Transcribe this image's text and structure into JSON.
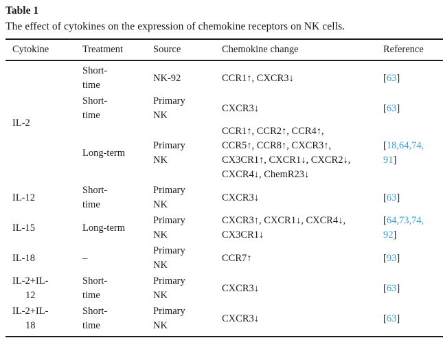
{
  "title": "Table 1",
  "caption": "The effect of cytokines on the expression of chemokine receptors on NK cells.",
  "colors": {
    "citation_blue": "#3A9FD6",
    "text": "#1b1b1b",
    "rule": "#1a1a1a"
  },
  "table": {
    "columns": [
      "Cytokine",
      "Treatment",
      "Source",
      "Chemokine change",
      "Reference"
    ],
    "groups": [
      {
        "cytokine_lines": [
          "IL-2"
        ],
        "rows": [
          {
            "treatment_lines": [
              "Short-",
              "time"
            ],
            "source_lines": [
              "NK-92"
            ],
            "change_lines": [
              "CCR1↑, CXCR3↓"
            ],
            "reference_numbers": [
              "63"
            ]
          },
          {
            "treatment_lines": [
              "Short-",
              "time"
            ],
            "source_lines": [
              "Primary",
              "NK"
            ],
            "change_lines": [
              "CXCR3↓"
            ],
            "reference_numbers": [
              "63"
            ]
          },
          {
            "treatment_lines": [
              "Long-term"
            ],
            "source_lines": [
              "Primary",
              "NK"
            ],
            "change_lines": [
              "CCR1↑, CCR2↑, CCR4↑,",
              "CCR5↑, CCR8↑, CXCR3↑,",
              "CX3CR1↑, CXCR1↓, CXCR2↓,",
              "CXCR4↓, ChemR23↓"
            ],
            "reference_numbers": [
              "18",
              "64",
              "74",
              "91"
            ]
          }
        ]
      },
      {
        "cytokine_lines": [
          "IL-12"
        ],
        "rows": [
          {
            "treatment_lines": [
              "Short-",
              "time"
            ],
            "source_lines": [
              "Primary",
              "NK"
            ],
            "change_lines": [
              "CXCR3↓"
            ],
            "reference_numbers": [
              "63"
            ]
          }
        ]
      },
      {
        "cytokine_lines": [
          "IL-15"
        ],
        "rows": [
          {
            "treatment_lines": [
              "Long-term"
            ],
            "source_lines": [
              "Primary",
              "NK"
            ],
            "change_lines": [
              "CXCR3↑, CXCR1↓, CXCR4↓,",
              "CX3CR1↓"
            ],
            "reference_numbers": [
              "64",
              "73",
              "74",
              "92"
            ]
          }
        ]
      },
      {
        "cytokine_lines": [
          "IL-18"
        ],
        "rows": [
          {
            "treatment_lines": [
              "–"
            ],
            "source_lines": [
              "Primary",
              "NK"
            ],
            "change_lines": [
              "CCR7↑"
            ],
            "reference_numbers": [
              "93"
            ]
          }
        ]
      },
      {
        "cytokine_lines": [
          "IL-2+IL-",
          "12"
        ],
        "rows": [
          {
            "treatment_lines": [
              "Short-",
              "time"
            ],
            "source_lines": [
              "Primary",
              "NK"
            ],
            "change_lines": [
              "CXCR3↓"
            ],
            "reference_numbers": [
              "63"
            ]
          }
        ]
      },
      {
        "cytokine_lines": [
          "IL-2+IL-",
          "18"
        ],
        "rows": [
          {
            "treatment_lines": [
              "Short-",
              "time"
            ],
            "source_lines": [
              "Primary",
              "NK"
            ],
            "change_lines": [
              "CXCR3↓"
            ],
            "reference_numbers": [
              "63"
            ]
          }
        ]
      }
    ]
  }
}
